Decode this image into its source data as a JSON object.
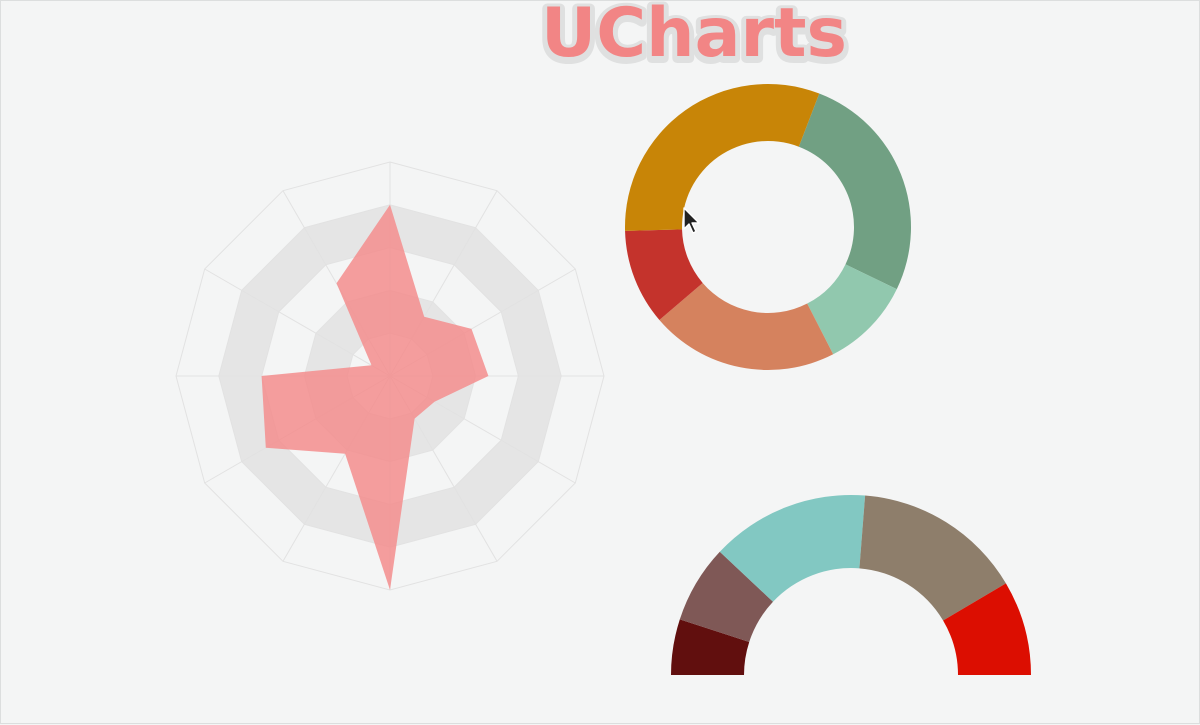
{
  "app": {
    "title": "UCharts",
    "title_color": "#f28585"
  },
  "chart_data": [
    {
      "type": "radar",
      "axes": 12,
      "max": 10,
      "rings": 5,
      "grid_band_color": "#e5e5e5",
      "grid_line_color": "#e2e2e2",
      "series": [
        {
          "color": "#f48a8a",
          "values": [
            8.0,
            3.2,
            4.4,
            4.6,
            2.4,
            2.3,
            10.0,
            4.2,
            6.7,
            6.0,
            1.0,
            5.0
          ]
        }
      ]
    },
    {
      "type": "pie",
      "variant": "donut",
      "slices": [
        {
          "value": 25.5,
          "color": "#71a083"
        },
        {
          "value": 10.0,
          "color": "#91c8ae"
        },
        {
          "value": 20.6,
          "color": "#d5825e"
        },
        {
          "value": 10.5,
          "color": "#c4332c"
        },
        {
          "value": 30.3,
          "color": "#c88507"
        }
      ]
    },
    {
      "type": "pie",
      "variant": "half-donut",
      "slices": [
        {
          "value": 10.0,
          "color": "#610f0e"
        },
        {
          "value": 14.0,
          "color": "#7f5856"
        },
        {
          "value": 28.5,
          "color": "#82c8c2"
        },
        {
          "value": 30.5,
          "color": "#8e7e6b"
        },
        {
          "value": 17.0,
          "color": "#dc0e01"
        }
      ]
    }
  ]
}
